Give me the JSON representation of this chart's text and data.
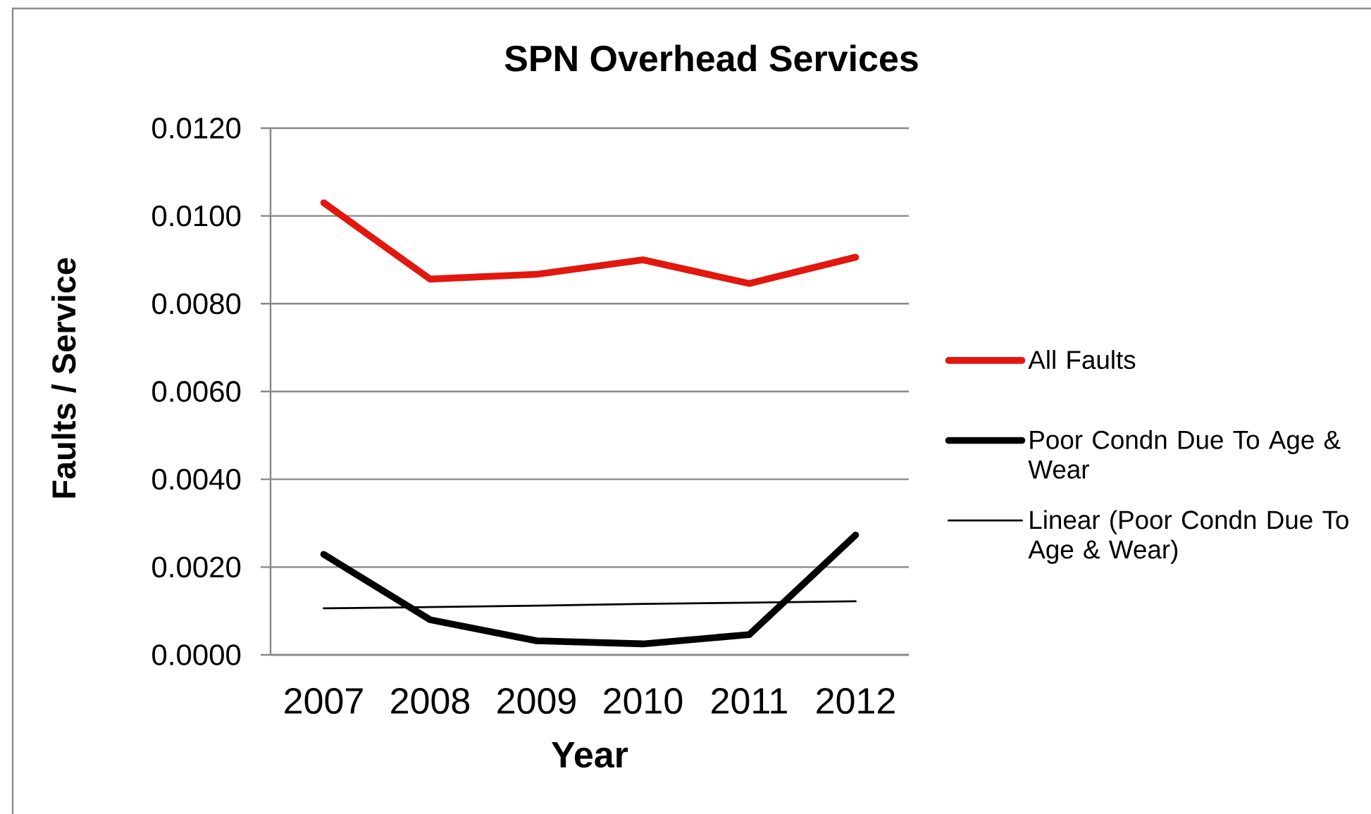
{
  "chart_data": {
    "type": "line",
    "title": "SPN Overhead Services",
    "xlabel": "Year",
    "ylabel": "Faults / Service",
    "categories": [
      "2007",
      "2008",
      "2009",
      "2010",
      "2011",
      "2012"
    ],
    "series": [
      {
        "name": "All Faults",
        "color": "#e2170e",
        "values": [
          0.0103,
          0.00856,
          0.00867,
          0.009,
          0.00846,
          0.00906
        ]
      },
      {
        "name": "Poor Condn Due To Age & Wear",
        "color": "#000000",
        "values": [
          0.00229,
          0.0008,
          0.00032,
          0.00025,
          0.00046,
          0.00273
        ]
      },
      {
        "name": "Linear (Poor Condn Due To Age & Wear)",
        "type": "line",
        "color": "#000000",
        "values": [
          0.00106,
          0.00109,
          0.00112,
          0.00116,
          0.00119,
          0.00122
        ]
      }
    ],
    "ylim": [
      0,
      0.012
    ],
    "yticks": [
      {
        "value": 0,
        "label": "0.0000"
      },
      {
        "value": 0.002,
        "label": "0.0020"
      },
      {
        "value": 0.004,
        "label": "0.0040"
      },
      {
        "value": 0.006,
        "label": "0.0060"
      },
      {
        "value": 0.008,
        "label": "0.0080"
      },
      {
        "value": 0.01,
        "label": "0.0100"
      },
      {
        "value": 0.012,
        "label": "0.0120"
      }
    ],
    "grid": "y",
    "legend": "right",
    "line_style": "solid"
  }
}
